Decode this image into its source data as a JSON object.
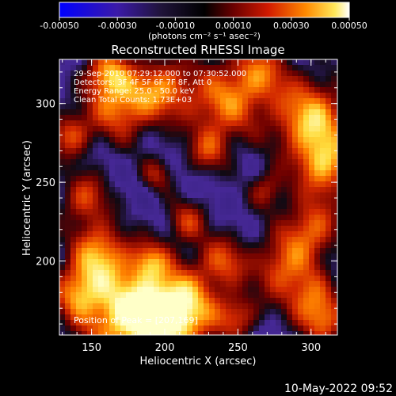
{
  "colorbar": {
    "ticks": [
      "-0.00050",
      "-0.00030",
      "-0.00010",
      "0.00010",
      "0.00030",
      "0.00050"
    ],
    "unit_label": "(photons cm⁻² s⁻¹ asec⁻²)"
  },
  "chart_data": {
    "type": "heatmap",
    "title": "Reconstructed RHESSI Image",
    "xlabel": "Heliocentric X (arcsec)",
    "ylabel": "Heliocentric Y (arcsec)",
    "xlim": [
      128,
      318
    ],
    "ylim": [
      153,
      328
    ],
    "xticks": [
      "150",
      "200",
      "250",
      "300"
    ],
    "yticks": [
      "200",
      "250",
      "300"
    ],
    "colorbar_range": [
      -0.0005,
      0.0005
    ],
    "annotations": [
      "29-Sep-2010 07:29:12.000 to 07:30:52.000",
      "Detectors: 3F 4F 5F 6F 7F 8F, Att 0",
      "Energy Range: 25.0 - 50.0 keV",
      "Clean     Total Counts: 1.73E+03"
    ],
    "peak_label": "Position of Peak = [207,169]",
    "peak": [
      207,
      169
    ]
  },
  "footer": {
    "timestamp": "10-May-2022 09:52"
  }
}
